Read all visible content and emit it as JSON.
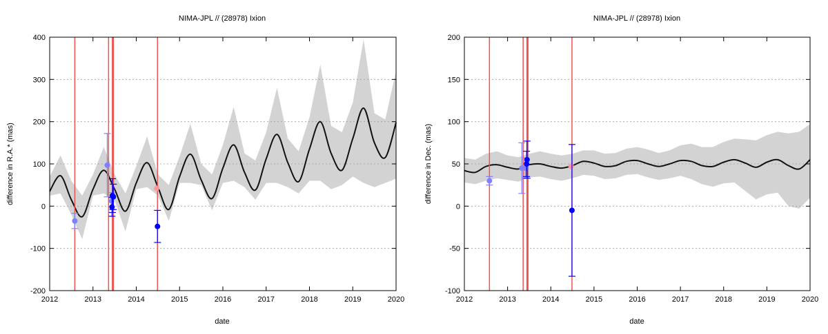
{
  "chart_data": [
    {
      "type": "line",
      "title": "NIMA-JPL // (28978) Ixion",
      "xlabel": "date",
      "ylabel": "difference in R.A.* (mas)",
      "xlim": [
        2012,
        2020
      ],
      "ylim": [
        -200,
        400
      ],
      "xticks": [
        "2012",
        "2013",
        "2014",
        "2015",
        "2016",
        "2017",
        "2018",
        "2019",
        "2020"
      ],
      "yticks": [
        "-200",
        "-100",
        "0",
        "100",
        "200",
        "300",
        "400"
      ],
      "grid": "horizontal-dotted",
      "band_color": "#d3d3d3",
      "line_color": "#111111",
      "model": {
        "x": [
          2012.0,
          2012.25,
          2012.5,
          2012.75,
          2013.0,
          2013.25,
          2013.5,
          2013.75,
          2014.0,
          2014.25,
          2014.5,
          2014.75,
          2015.0,
          2015.25,
          2015.5,
          2015.75,
          2016.0,
          2016.25,
          2016.5,
          2016.75,
          2017.0,
          2017.25,
          2017.5,
          2017.75,
          2018.0,
          2018.25,
          2018.5,
          2018.75,
          2019.0,
          2019.25,
          2019.5,
          2019.75,
          2020.0
        ],
        "center": [
          35,
          72,
          15,
          -25,
          40,
          85,
          40,
          -12,
          55,
          103,
          45,
          -8,
          70,
          123,
          62,
          18,
          90,
          145,
          80,
          38,
          112,
          170,
          103,
          58,
          135,
          200,
          125,
          85,
          160,
          232,
          150,
          115,
          198
        ],
        "upper": [
          70,
          120,
          60,
          25,
          75,
          140,
          75,
          30,
          95,
          165,
          75,
          50,
          118,
          195,
          100,
          75,
          145,
          235,
          125,
          108,
          175,
          280,
          160,
          130,
          210,
          335,
          190,
          175,
          245,
          395,
          220,
          205,
          320
        ],
        "lower": [
          25,
          30,
          -20,
          -78,
          25,
          30,
          15,
          -60,
          40,
          45,
          25,
          -35,
          55,
          55,
          50,
          -10,
          55,
          60,
          45,
          15,
          55,
          55,
          45,
          30,
          60,
          60,
          40,
          50,
          70,
          55,
          45,
          55,
          65
        ]
      },
      "vlines": [
        {
          "x": 2012.58,
          "width": 1.5
        },
        {
          "x": 2013.36,
          "width": 1.5
        },
        {
          "x": 2013.46,
          "width": 3
        },
        {
          "x": 2014.49,
          "width": 1.5
        }
      ],
      "vline_color": "#ef5350",
      "points": [
        {
          "x": 2012.58,
          "y": -35,
          "err": 18,
          "color": "#8080ff"
        },
        {
          "x": 2013.33,
          "y": 97,
          "err": 75,
          "color": "#8080ff"
        },
        {
          "x": 2013.43,
          "y": 12,
          "err": 20,
          "color": "#8080ff"
        },
        {
          "x": 2013.45,
          "y": 25,
          "err": 40,
          "color": "#0000ff"
        },
        {
          "x": 2013.47,
          "y": 22,
          "err": 30,
          "color": "#0000ff"
        },
        {
          "x": 2013.44,
          "y": -2,
          "err": 22,
          "color": "#0000ff"
        },
        {
          "x": 2014.47,
          "y": 42,
          "err": 0,
          "color": "#ff9999"
        },
        {
          "x": 2014.49,
          "y": -48,
          "err": 38,
          "color": "#0000ff"
        }
      ]
    },
    {
      "type": "line",
      "title": "NIMA-JPL // (28978) Ixion",
      "xlabel": "date",
      "ylabel": "difference in Dec. (mas)",
      "xlim": [
        2012,
        2020
      ],
      "ylim": [
        -100,
        200
      ],
      "xticks": [
        "2012",
        "2013",
        "2014",
        "2015",
        "2016",
        "2017",
        "2018",
        "2019",
        "2020"
      ],
      "yticks": [
        "-100",
        "-50",
        "0",
        "50",
        "100",
        "150",
        "200"
      ],
      "grid": "horizontal-dotted",
      "band_color": "#d3d3d3",
      "line_color": "#111111",
      "model": {
        "x": [
          2012.0,
          2012.25,
          2012.5,
          2012.75,
          2013.0,
          2013.25,
          2013.5,
          2013.75,
          2014.0,
          2014.25,
          2014.5,
          2014.75,
          2015.0,
          2015.25,
          2015.5,
          2015.75,
          2016.0,
          2016.25,
          2016.5,
          2016.75,
          2017.0,
          2017.25,
          2017.5,
          2017.75,
          2018.0,
          2018.25,
          2018.5,
          2018.75,
          2019.0,
          2019.25,
          2019.5,
          2019.75,
          2020.0
        ],
        "center": [
          42,
          40,
          47,
          49,
          46,
          44,
          49,
          50,
          47,
          45,
          48,
          53,
          51,
          47,
          48,
          53,
          54,
          50,
          47,
          50,
          54,
          53,
          48,
          47,
          52,
          55,
          51,
          46,
          52,
          55,
          48,
          44,
          55
        ],
        "upper": [
          57,
          55,
          62,
          65,
          60,
          58,
          62,
          65,
          62,
          60,
          62,
          66,
          66,
          62,
          63,
          68,
          70,
          67,
          63,
          66,
          72,
          74,
          70,
          70,
          76,
          80,
          79,
          78,
          84,
          88,
          86,
          88,
          97
        ],
        "lower": [
          28,
          26,
          30,
          33,
          31,
          29,
          34,
          35,
          32,
          30,
          33,
          37,
          36,
          32,
          33,
          37,
          38,
          34,
          31,
          33,
          36,
          32,
          26,
          23,
          27,
          28,
          18,
          8,
          14,
          16,
          0,
          -3,
          10
        ]
      },
      "vlines": [
        {
          "x": 2012.58,
          "width": 1.5
        },
        {
          "x": 2013.36,
          "width": 1.5
        },
        {
          "x": 2013.46,
          "width": 3
        },
        {
          "x": 2014.49,
          "width": 1.5
        }
      ],
      "vline_color": "#ef5350",
      "points": [
        {
          "x": 2012.58,
          "y": 30,
          "err": 5,
          "color": "#8080ff"
        },
        {
          "x": 2013.33,
          "y": 45,
          "err": 30,
          "color": "#8080ff"
        },
        {
          "x": 2013.41,
          "y": 45,
          "err": 12,
          "color": "#8080ff"
        },
        {
          "x": 2013.45,
          "y": 55,
          "err": 22,
          "color": "#0000ff"
        },
        {
          "x": 2013.44,
          "y": 50,
          "err": 15,
          "color": "#0000ff"
        },
        {
          "x": 2014.47,
          "y": 47,
          "err": 0,
          "color": "#ff9999"
        },
        {
          "x": 2014.49,
          "y": -5,
          "err": 78,
          "color": "#0000ff"
        }
      ]
    }
  ]
}
